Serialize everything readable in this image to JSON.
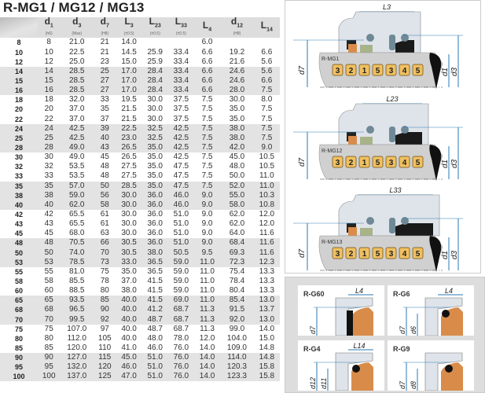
{
  "title": "R-MG1 / MG12 / MG13",
  "columns": [
    {
      "name": "d",
      "sub": "1",
      "tol": "(h6)"
    },
    {
      "name": "d",
      "sub": "3",
      "tol": "(Max)"
    },
    {
      "name": "d",
      "sub": "7",
      "tol": "(H8)"
    },
    {
      "name": "L",
      "sub": "3",
      "tol": "(±0.5)"
    },
    {
      "name": "L",
      "sub": "23",
      "tol": "(±0.5)"
    },
    {
      "name": "L",
      "sub": "33",
      "tol": "(±0.5)"
    },
    {
      "name": "L",
      "sub": "4",
      "tol": ""
    },
    {
      "name": "d",
      "sub": "12",
      "tol": "(H8)"
    },
    {
      "name": "L",
      "sub": "14",
      "tol": ""
    }
  ],
  "rows": [
    [
      "8",
      "8",
      "21.0",
      "21",
      "14.0",
      "",
      "",
      "6.0",
      "",
      ""
    ],
    [
      "10",
      "10",
      "22.5",
      "21",
      "14.5",
      "25.9",
      "33.4",
      "6.6",
      "19.2",
      "6.6"
    ],
    [
      "12",
      "12",
      "25.0",
      "23",
      "15.0",
      "25.9",
      "33.4",
      "6.6",
      "21.6",
      "5.6"
    ],
    [
      "14",
      "14",
      "28.5",
      "25",
      "17.0",
      "28.4",
      "33.4",
      "6.6",
      "24.6",
      "5.6"
    ],
    [
      "15",
      "15",
      "28.5",
      "27",
      "17.0",
      "28.4",
      "33.4",
      "6.6",
      "24.6",
      "6.6"
    ],
    [
      "16",
      "16",
      "28.5",
      "27",
      "17.0",
      "28.4",
      "33.4",
      "6.6",
      "28.0",
      "7.5"
    ],
    [
      "18",
      "18",
      "32.0",
      "33",
      "19.5",
      "30.0",
      "37.5",
      "7.5",
      "30.0",
      "8.0"
    ],
    [
      "20",
      "20",
      "37.0",
      "35",
      "21.5",
      "30.0",
      "37.5",
      "7.5",
      "35.0",
      "7.5"
    ],
    [
      "22",
      "22",
      "37.0",
      "37",
      "21.5",
      "30.0",
      "37.5",
      "7.5",
      "35.0",
      "7.5"
    ],
    [
      "24",
      "24",
      "42.5",
      "39",
      "22.5",
      "32.5",
      "42.5",
      "7.5",
      "38.0",
      "7.5"
    ],
    [
      "25",
      "25",
      "42.5",
      "40",
      "23.0",
      "32.5",
      "42.5",
      "7.5",
      "38.0",
      "7.5"
    ],
    [
      "28",
      "28",
      "49.0",
      "43",
      "26.5",
      "35.0",
      "42.5",
      "7.5",
      "42.0",
      "9.0"
    ],
    [
      "30",
      "30",
      "49.0",
      "45",
      "26.5",
      "35.0",
      "42.5",
      "7.5",
      "45.0",
      "10.5"
    ],
    [
      "32",
      "32",
      "53.5",
      "48",
      "27.5",
      "35.0",
      "47.5",
      "7.5",
      "48.0",
      "10.5"
    ],
    [
      "33",
      "33",
      "53.5",
      "48",
      "27.5",
      "35.0",
      "47.5",
      "7.5",
      "50.0",
      "11.0"
    ],
    [
      "35",
      "35",
      "57.0",
      "50",
      "28.5",
      "35.0",
      "47.5",
      "7.5",
      "52.0",
      "11.0"
    ],
    [
      "38",
      "38",
      "59.0",
      "56",
      "30.0",
      "36.0",
      "46.0",
      "9.0",
      "55.0",
      "10.3"
    ],
    [
      "40",
      "40",
      "62.0",
      "58",
      "30.0",
      "36.0",
      "46.0",
      "9.0",
      "58.0",
      "10.8"
    ],
    [
      "42",
      "42",
      "65.5",
      "61",
      "30.0",
      "36.0",
      "51.0",
      "9.0",
      "62.0",
      "12.0"
    ],
    [
      "43",
      "43",
      "65.5",
      "61",
      "30.0",
      "36.0",
      "51.0",
      "9.0",
      "62.0",
      "12.0"
    ],
    [
      "45",
      "45",
      "68.0",
      "63",
      "30.0",
      "36.0",
      "51.0",
      "9.0",
      "64.0",
      "11.6"
    ],
    [
      "48",
      "48",
      "70.5",
      "66",
      "30.5",
      "36.0",
      "51.0",
      "9.0",
      "68.4",
      "11.6"
    ],
    [
      "50",
      "50",
      "74.0",
      "70",
      "30.5",
      "38.0",
      "50.5",
      "9.5",
      "69.3",
      "11.6"
    ],
    [
      "53",
      "53",
      "78.5",
      "73",
      "33.0",
      "36.5",
      "59.0",
      "11.0",
      "72.3",
      "12.3"
    ],
    [
      "55",
      "55",
      "81.0",
      "75",
      "35.0",
      "36.5",
      "59.0",
      "11.0",
      "75.4",
      "13.3"
    ],
    [
      "58",
      "58",
      "85.5",
      "78",
      "37.0",
      "41.5",
      "59.0",
      "11.0",
      "78.4",
      "13.3"
    ],
    [
      "60",
      "60",
      "88.5",
      "80",
      "38.0",
      "41.5",
      "59.0",
      "11.0",
      "80.4",
      "13.3"
    ],
    [
      "65",
      "65",
      "93.5",
      "85",
      "40.0",
      "41.5",
      "69.0",
      "11.0",
      "85.4",
      "13.0"
    ],
    [
      "68",
      "68",
      "96.5",
      "90",
      "40.0",
      "41.2",
      "68.7",
      "11.3",
      "91.5",
      "13.7"
    ],
    [
      "70",
      "70",
      "99.5",
      "92",
      "40.0",
      "48.7",
      "68.7",
      "11.3",
      "92.0",
      "13.0"
    ],
    [
      "75",
      "75",
      "107.0",
      "97",
      "40.0",
      "48.7",
      "68.7",
      "11.3",
      "99.0",
      "14.0"
    ],
    [
      "80",
      "80",
      "112.0",
      "105",
      "40.0",
      "48.0",
      "78.0",
      "12.0",
      "104.0",
      "15.0"
    ],
    [
      "85",
      "85",
      "120.0",
      "110",
      "41.0",
      "46.0",
      "76.0",
      "14.0",
      "109.0",
      "14.8"
    ],
    [
      "90",
      "90",
      "127.0",
      "115",
      "45.0",
      "51.0",
      "76.0",
      "14.0",
      "114.0",
      "14.8"
    ],
    [
      "95",
      "95",
      "132.0",
      "120",
      "46.0",
      "51.0",
      "76.0",
      "14.0",
      "120.3",
      "15.8"
    ],
    [
      "100",
      "100",
      "137.0",
      "125",
      "47.0",
      "51.0",
      "76.0",
      "14.0",
      "123.3",
      "15.8"
    ]
  ],
  "seals": [
    {
      "label": "R-MG1",
      "length": "L3",
      "d7": "d7",
      "d1": "d1",
      "d3": "d3",
      "parts": [
        "3",
        "2",
        "1",
        "5",
        "3",
        "4",
        "5"
      ]
    },
    {
      "label": "R-MG12",
      "length": "L23",
      "d7": "d7",
      "d1": "d1",
      "d3": "d3",
      "parts": [
        "3",
        "2",
        "1",
        "5",
        "3",
        "4",
        "5"
      ]
    },
    {
      "label": "R-MG13",
      "length": "L33",
      "d7": "d7",
      "d1": "d1",
      "d3": "d3",
      "parts": [
        "3",
        "2",
        "1",
        "5",
        "3",
        "4",
        "5"
      ]
    }
  ],
  "seats": [
    {
      "label": "R-G60",
      "dims": [
        "L4",
        "d7"
      ]
    },
    {
      "label": "R-G6",
      "dims": [
        "L4",
        "d7",
        "d6"
      ]
    },
    {
      "label": "R-G4",
      "dims": [
        "L14",
        "d12",
        "d11"
      ]
    },
    {
      "label": "R-G9",
      "dims": [
        "d7",
        "d8"
      ]
    }
  ],
  "colors": {
    "badge": "#f0c060",
    "seat": "#d98c4a",
    "line": "#2a7ab0",
    "housing": "#dfe4ea",
    "shaft": "#d0d0d0"
  }
}
